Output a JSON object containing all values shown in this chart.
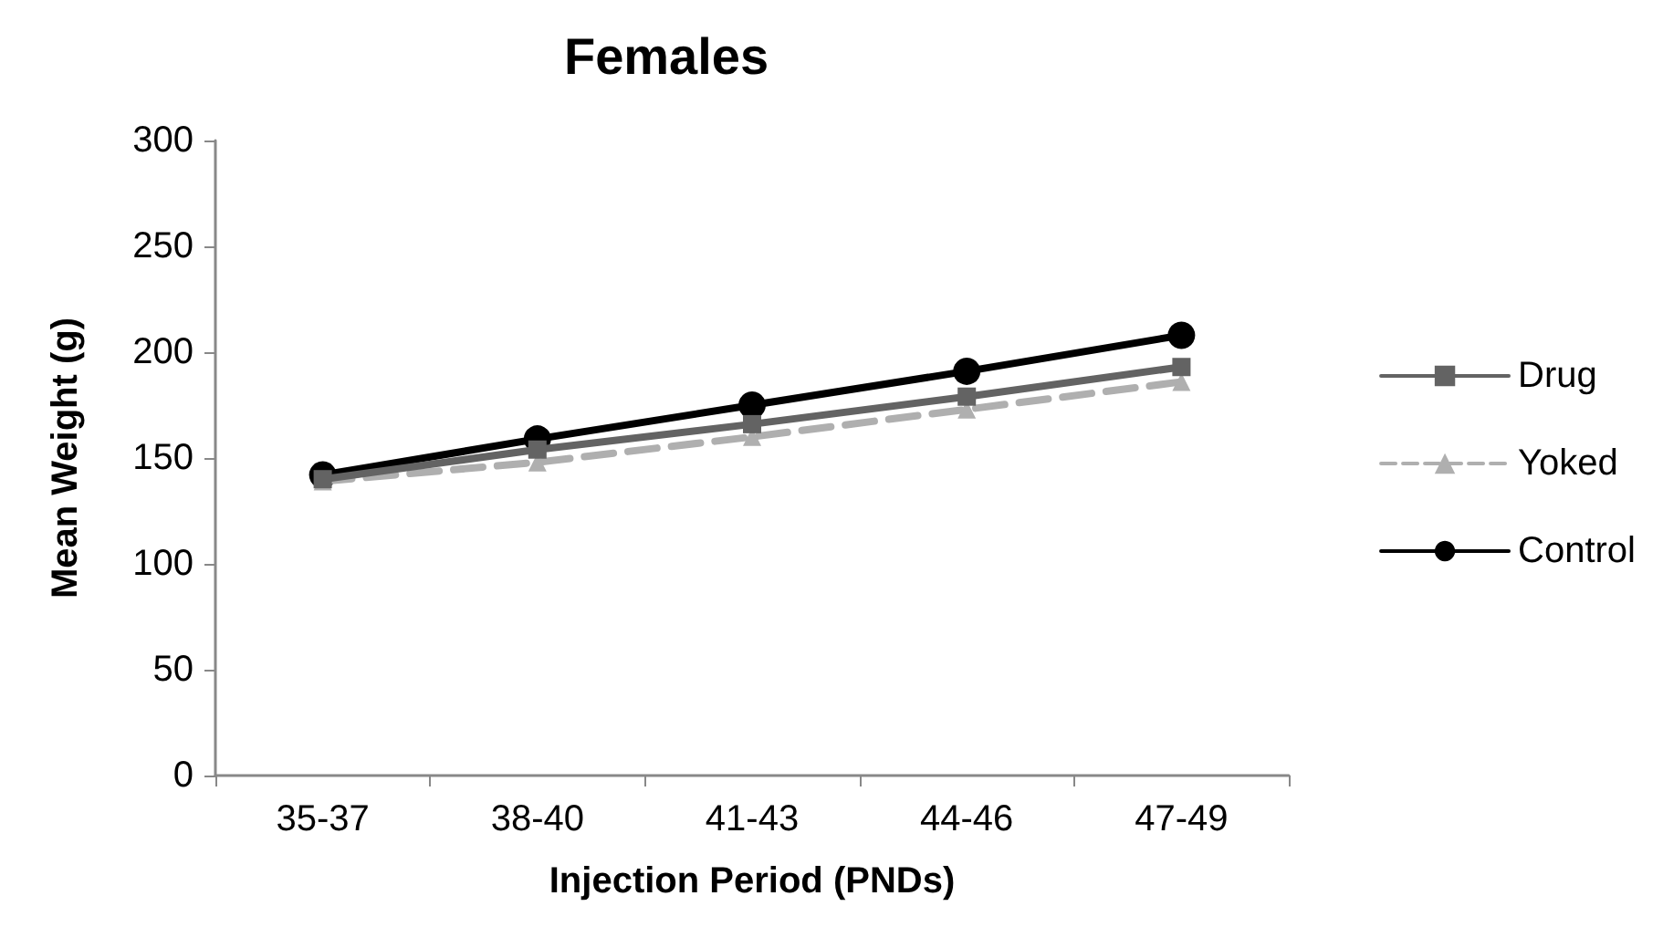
{
  "chart_data": {
    "type": "line",
    "title": "Females",
    "xlabel": "Injection Period (PNDs)",
    "ylabel": "Mean Weight (g)",
    "categories": [
      "35-37",
      "38-40",
      "41-43",
      "44-46",
      "47-49"
    ],
    "series": [
      {
        "name": "Drug",
        "color": "#636363",
        "marker": "square",
        "line_style": "solid",
        "values": [
          140,
          154,
          166,
          179,
          193
        ]
      },
      {
        "name": "Yoked",
        "color": "#afafaf",
        "marker": "triangle",
        "line_style": "dashed",
        "values": [
          139,
          148,
          160,
          173,
          186
        ]
      },
      {
        "name": "Control",
        "color": "#000000",
        "marker": "circle",
        "line_style": "solid",
        "values": [
          142,
          159,
          175,
          191,
          208
        ]
      }
    ],
    "ylim": [
      0,
      300
    ],
    "yticks": [
      0,
      50,
      100,
      150,
      200,
      250,
      300
    ],
    "grid": false,
    "legend": "right"
  }
}
